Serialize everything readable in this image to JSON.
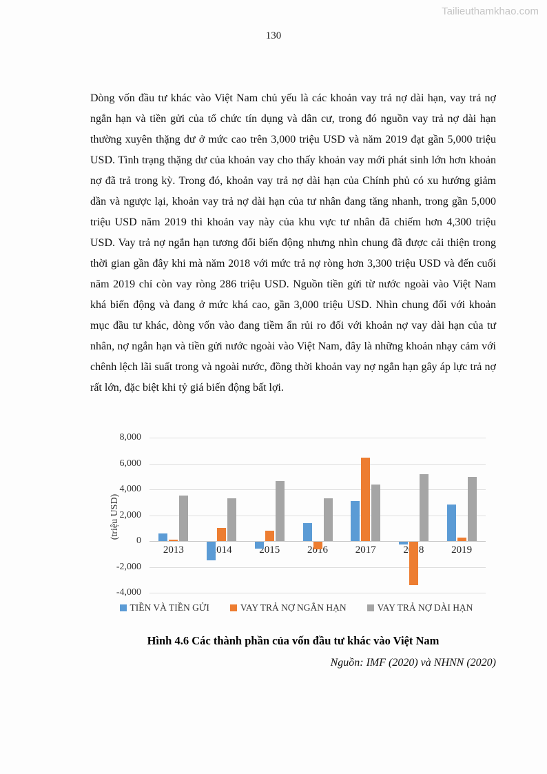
{
  "watermark": "Tailieuthamkhao.com",
  "page_number": "130",
  "paragraph": "Dòng vốn đầu tư khác vào Việt Nam chủ yếu là các khoản vay trả nợ dài hạn, vay trả nợ ngắn hạn và tiền gửi của tổ chức tín dụng và dân cư, trong đó nguồn vay trả nợ dài hạn thường xuyên thặng dư ở mức cao trên 3,000 triệu USD và năm 2019 đạt gần 5,000 triệu USD. Tình trạng thặng dư của khoản vay cho thấy khoản vay mới phát sinh lớn hơn khoản nợ đã trả trong kỳ. Trong đó, khoản vay trả nợ dài hạn của Chính phủ có xu hướng giảm dần và ngược lại, khoản vay trả nợ dài hạn của tư nhân đang tăng nhanh, trong gần 5,000 triệu USD năm 2019 thì khoản vay này của khu vực tư nhân đã chiếm hơn 4,300 triệu USD. Vay trả nợ ngắn hạn tương đối biến động nhưng nhìn chung đã được cải thiện trong thời gian gần đây khi mà năm 2018 với mức trả nợ ròng hơn 3,300 triệu USD và đến cuối năm 2019 chỉ còn vay ròng 286 triệu USD. Nguồn tiền gửi từ nước ngoài vào Việt Nam khá biến động và đang ở mức khá cao, gần 3,000 triệu USD. Nhìn chung đối với khoản mục đầu tư khác, dòng vốn vào đang tiềm ẩn rủi ro đối với khoản nợ vay dài hạn của tư nhân, nợ ngắn hạn và tiền gửi nước ngoài vào Việt Nam, đây là những khoản nhạy cảm với chênh lệch lãi suất trong và ngoài nước, đồng thời khoản vay nợ ngắn hạn gây áp lực trả nợ rất lớn, đặc biệt khi tỷ giá biến động bất lợi.",
  "chart_data": {
    "type": "bar",
    "title": "",
    "xlabel": "",
    "ylabel": "(triệu USD)",
    "categories": [
      "2013",
      "2014",
      "2015",
      "2016",
      "2017",
      "2018",
      "2019"
    ],
    "series": [
      {
        "name": "TIỀN VÀ TIỀN GỬI",
        "color": "#5B9BD5",
        "values": [
          600,
          -1450,
          -550,
          1400,
          3100,
          -200,
          2850
        ]
      },
      {
        "name": "VAY TRẢ NỢ NGẮN HẠN",
        "color": "#ED7D31",
        "values": [
          100,
          1030,
          780,
          -600,
          6450,
          -3350,
          286
        ]
      },
      {
        "name": "VAY TRẢ NỢ DÀI HẠN",
        "color": "#A5A5A5",
        "values": [
          3500,
          3290,
          4650,
          3320,
          4400,
          5200,
          4950
        ]
      }
    ],
    "ylim": [
      -4000,
      8000
    ],
    "yticks": [
      {
        "label": "8,000",
        "value": 8000
      },
      {
        "label": "6,000",
        "value": 6000
      },
      {
        "label": "4,000",
        "value": 4000
      },
      {
        "label": "2,000",
        "value": 2000
      },
      {
        "label": "0",
        "value": 0
      },
      {
        "label": "-2,000",
        "value": -2000
      },
      {
        "label": "-4,000",
        "value": -4000
      }
    ],
    "grid": true,
    "legend_position": "bottom"
  },
  "figure": {
    "caption": "Hình 4.6 Các thành phần của vốn đầu tư khác vào Việt Nam",
    "source": "Nguồn: IMF (2020) và NHNN (2020)"
  }
}
